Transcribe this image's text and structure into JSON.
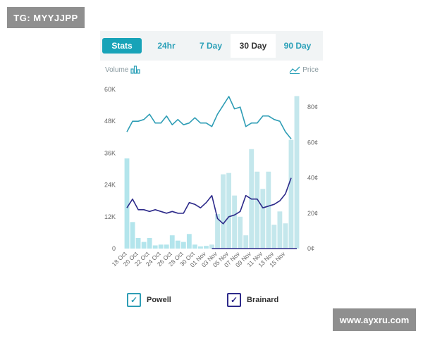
{
  "watermarks": {
    "top_left": "TG: MYYJJPP",
    "bottom_right": "www.ayxru.com"
  },
  "tabs": [
    "Stats",
    "24hr",
    "7 Day",
    "30 Day",
    "90 Day"
  ],
  "active_tab": "30 Day",
  "labels": {
    "volume": "Volume",
    "price": "Price"
  },
  "icons": {
    "volume": "bar-chart-icon",
    "price": "line-chart-icon"
  },
  "legend": [
    {
      "name": "Powell",
      "checked": true,
      "color": "#2e9db5"
    },
    {
      "name": "Brainard",
      "checked": true,
      "color": "#2d2a8a"
    }
  ],
  "chart_data": {
    "type": "bar",
    "x_tick_labels": [
      "18 Oct",
      "20 Oct",
      "22 Oct",
      "24 Oct",
      "26 Oct",
      "28 Oct",
      "30 Oct",
      "01 Nov",
      "03 Nov",
      "05 Nov",
      "07 Nov",
      "09 Nov",
      "11 Nov",
      "13 Nov",
      "15 Nov"
    ],
    "y_left_ticks": [
      "0",
      "12K",
      "24K",
      "36K",
      "48K",
      "60K"
    ],
    "y_left_range": [
      0,
      60000
    ],
    "y_right_ticks": [
      "0¢",
      "20¢",
      "40¢",
      "60¢",
      "80¢"
    ],
    "y_right_range": [
      0,
      90
    ],
    "n_days": 31,
    "volume_series": {
      "colors": [
        "#b3e5ec",
        "#c4e7ec"
      ],
      "values_powell": [
        34000,
        10000,
        4000,
        2500,
        4000,
        1200,
        1500,
        1500,
        5000,
        3000,
        2500,
        5500,
        1500,
        800,
        1000,
        0,
        0,
        0,
        0,
        0,
        0,
        0,
        0,
        0,
        0,
        0,
        0,
        0,
        0,
        0,
        0
      ],
      "values_brainard": [
        0,
        0,
        0,
        0,
        0,
        0,
        0,
        0,
        0,
        0,
        0,
        0,
        0,
        0,
        0,
        1500,
        13000,
        28000,
        28500,
        20000,
        12000,
        5000,
        37500,
        29000,
        22500,
        29000,
        9000,
        14000,
        9500,
        41000,
        57500
      ]
    },
    "price_series": [
      {
        "name": "Powell",
        "color": "#2e9db5",
        "values": [
          66,
          72,
          72,
          73,
          76,
          71,
          71,
          75,
          70,
          73,
          70,
          71,
          74,
          71,
          71,
          69,
          76,
          81,
          86,
          79,
          80,
          69,
          71,
          71,
          75,
          75,
          73,
          72,
          66,
          62,
          null
        ]
      },
      {
        "name": "Brainard",
        "color": "#2d2a8a",
        "values": [
          23,
          28,
          22,
          22,
          21,
          22,
          21,
          20,
          21,
          20,
          20,
          26,
          25,
          23,
          26,
          30,
          17,
          14,
          18,
          19,
          21,
          30,
          28,
          28,
          23,
          24,
          25,
          27,
          31,
          40,
          null
        ]
      },
      {
        "name": "Brainard-zero",
        "color": "#2d2a8a",
        "values": [
          null,
          null,
          null,
          null,
          null,
          null,
          null,
          null,
          null,
          null,
          null,
          null,
          null,
          null,
          null,
          0,
          0,
          0,
          0,
          0,
          0,
          0,
          0,
          0,
          0,
          0,
          0,
          0,
          0,
          0,
          0
        ]
      }
    ]
  }
}
